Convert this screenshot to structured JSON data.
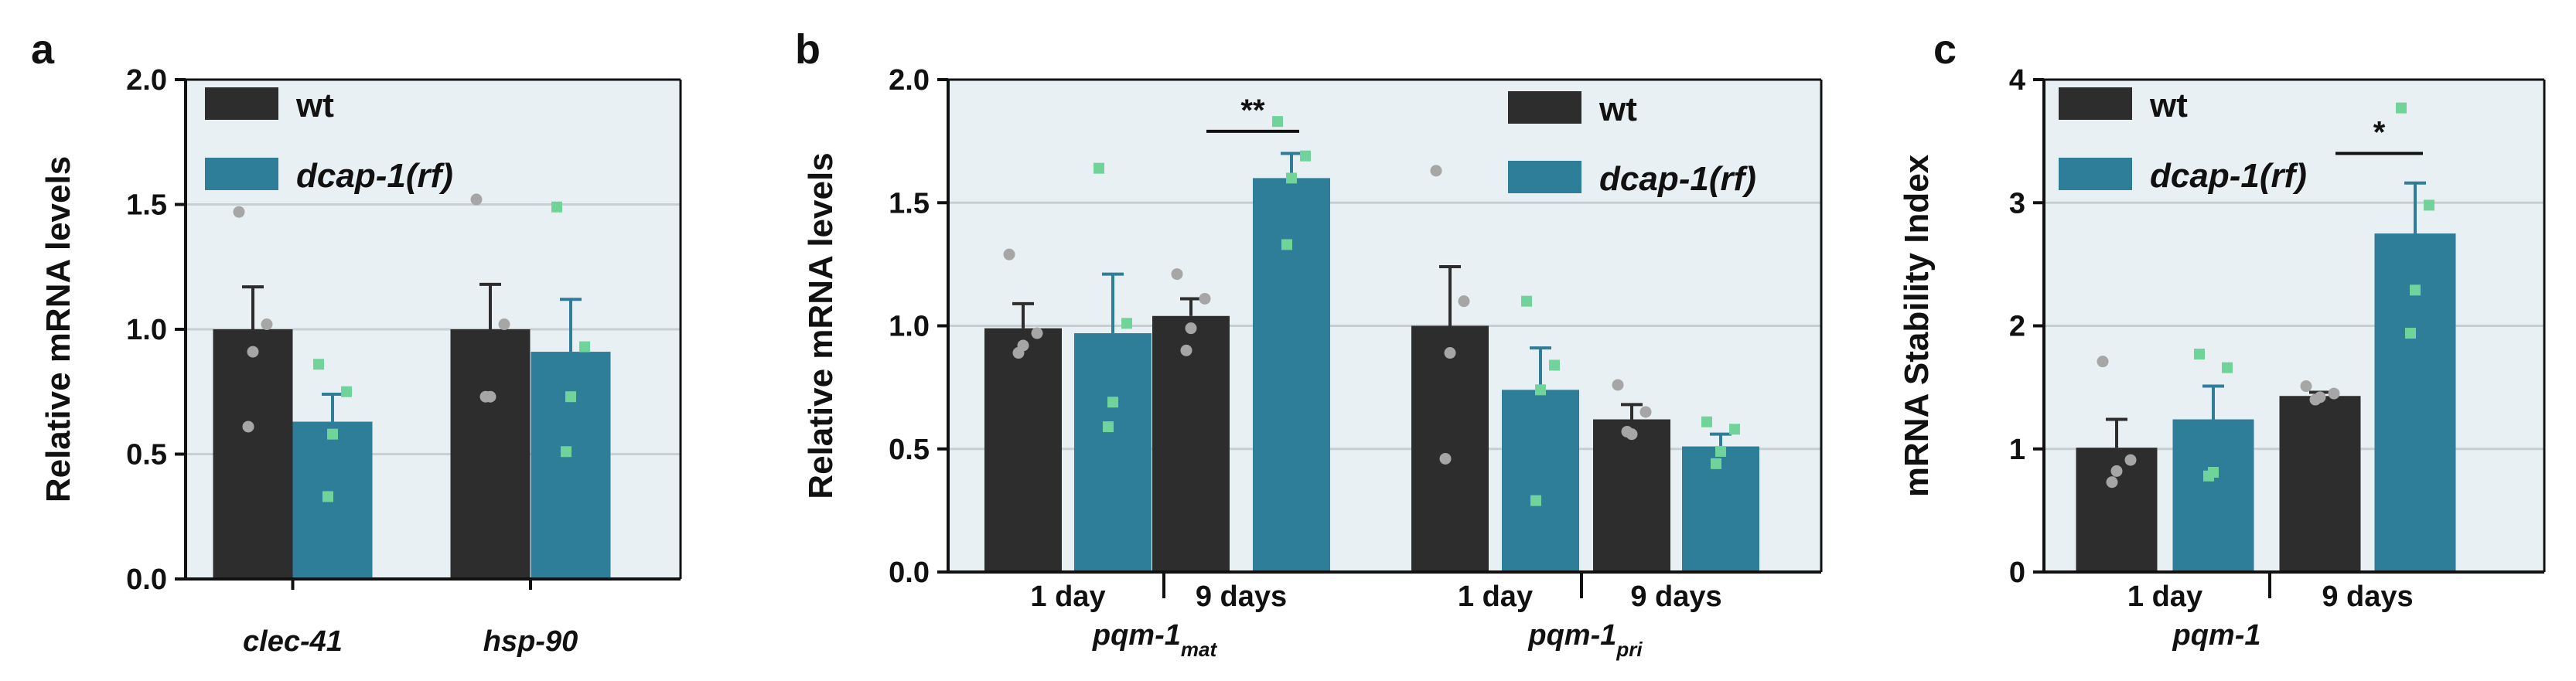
{
  "colors": {
    "wt": "#2d2d2d",
    "mut": "#2e7d99",
    "bg": "#e9f0f3",
    "grid": "#c8cfd3",
    "wt_dot": "#a6a6a6",
    "mut_dot": "#6fd39a"
  },
  "chart_data": [
    {
      "type": "bar",
      "panel": "a",
      "ylabel": "Relative mRNA levels",
      "ylim": [
        0,
        2.0
      ],
      "yticks": [
        "0.0",
        "0.5",
        "1.0",
        "1.5",
        "2.0"
      ],
      "legend": [
        "wt",
        "dcap-1(rf)"
      ],
      "groups": [
        {
          "label": "clec-41",
          "bars": [
            {
              "series": "wt",
              "value": 1.0,
              "err": 0.17,
              "points": [
                1.47,
                1.02,
                0.91,
                0.61
              ]
            },
            {
              "series": "dcap-1(rf)",
              "value": 0.63,
              "err": 0.11,
              "points": [
                0.86,
                0.75,
                0.58,
                0.33
              ]
            }
          ]
        },
        {
          "label": "hsp-90",
          "bars": [
            {
              "series": "wt",
              "value": 1.0,
              "err": 0.18,
              "points": [
                1.52,
                1.02,
                0.73,
                0.73
              ]
            },
            {
              "series": "dcap-1(rf)",
              "value": 0.91,
              "err": 0.21,
              "points": [
                1.49,
                0.93,
                0.73,
                0.51
              ]
            }
          ]
        }
      ],
      "significance": []
    },
    {
      "type": "bar",
      "panel": "b",
      "ylabel": "Relative mRNA levels",
      "ylim": [
        0,
        2.0
      ],
      "yticks": [
        "0.0",
        "0.5",
        "1.0",
        "1.5",
        "2.0"
      ],
      "legend": [
        "wt",
        "dcap-1(rf)"
      ],
      "groups": [
        {
          "label": "1 day",
          "gene": "pqm-1",
          "sub": "mat",
          "bars": [
            {
              "series": "wt",
              "value": 0.99,
              "err": 0.1,
              "points": [
                1.29,
                0.97,
                0.92,
                0.89
              ]
            },
            {
              "series": "dcap-1(rf)",
              "value": 0.97,
              "err": 0.24,
              "points": [
                1.64,
                1.01,
                0.69,
                0.59
              ]
            }
          ]
        },
        {
          "label": "9 days",
          "gene": "pqm-1",
          "sub": "mat",
          "bars": [
            {
              "series": "wt",
              "value": 1.04,
              "err": 0.07,
              "points": [
                1.21,
                1.11,
                0.99,
                0.9
              ]
            },
            {
              "series": "dcap-1(rf)",
              "value": 1.6,
              "err": 0.1,
              "points": [
                1.83,
                1.69,
                1.6,
                1.33
              ]
            }
          ]
        },
        {
          "label": "1 day",
          "gene": "pqm-1",
          "sub": "pri",
          "bars": [
            {
              "series": "wt",
              "value": 1.0,
              "err": 0.24,
              "points": [
                1.63,
                1.1,
                0.89,
                0.46
              ]
            },
            {
              "series": "dcap-1(rf)",
              "value": 0.74,
              "err": 0.17,
              "points": [
                1.1,
                0.84,
                0.74,
                0.29
              ]
            }
          ]
        },
        {
          "label": "9 days",
          "gene": "pqm-1",
          "sub": "pri",
          "bars": [
            {
              "series": "wt",
              "value": 0.62,
              "err": 0.06,
              "points": [
                0.76,
                0.65,
                0.56,
                0.57
              ]
            },
            {
              "series": "dcap-1(rf)",
              "value": 0.51,
              "err": 0.05,
              "points": [
                0.61,
                0.58,
                0.49,
                0.44
              ]
            }
          ]
        }
      ],
      "gene_labels": [
        {
          "gene": "pqm-1",
          "sub": "mat"
        },
        {
          "gene": "pqm-1",
          "sub": "pri"
        }
      ],
      "significance": [
        {
          "group": 1,
          "label": "**",
          "y": 1.79
        }
      ]
    },
    {
      "type": "bar",
      "panel": "c",
      "ylabel": "mRNA Stability Index",
      "ylim": [
        0,
        4
      ],
      "yticks": [
        "0",
        "1",
        "2",
        "3",
        "4"
      ],
      "legend": [
        "wt",
        "dcap-1(rf)"
      ],
      "groups": [
        {
          "label": "1 day",
          "bars": [
            {
              "series": "wt",
              "value": 1.01,
              "err": 0.23,
              "points": [
                1.71,
                0.91,
                0.82,
                0.73
              ]
            },
            {
              "series": "dcap-1(rf)",
              "value": 1.24,
              "err": 0.27,
              "points": [
                1.77,
                1.66,
                0.81,
                0.78
              ]
            }
          ]
        },
        {
          "label": "9 days",
          "bars": [
            {
              "series": "wt",
              "value": 1.43,
              "err": 0.03,
              "points": [
                1.51,
                1.45,
                1.42,
                1.4
              ]
            },
            {
              "series": "dcap-1(rf)",
              "value": 2.75,
              "err": 0.41,
              "points": [
                3.77,
                2.98,
                2.29,
                1.94
              ]
            }
          ]
        }
      ],
      "gene_label": "pqm-1",
      "significance": [
        {
          "group": 1,
          "label": "*",
          "y": 3.4
        }
      ]
    }
  ]
}
